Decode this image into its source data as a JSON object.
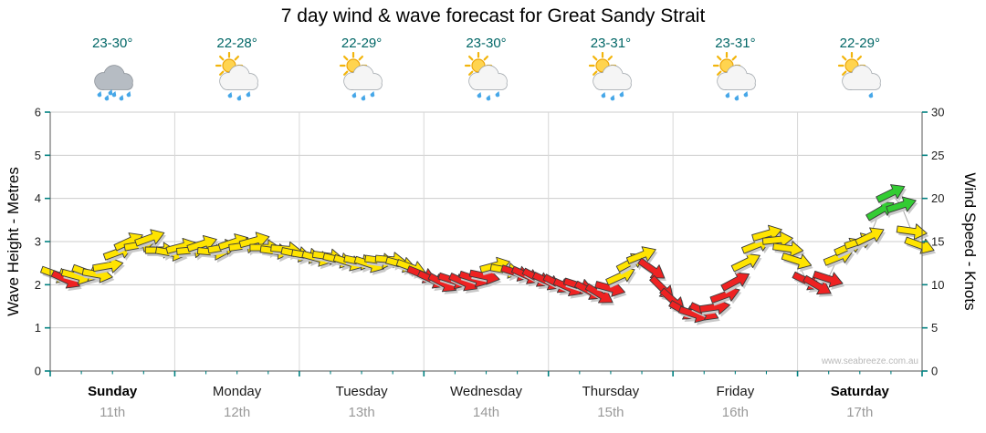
{
  "title": "7 day wind & wave forecast for Great Sandy Strait",
  "watermark": "www.seabreeze.com.au",
  "axes": {
    "left_label": "Wave Height - Metres",
    "right_label": "Wind Speed - Knots",
    "left_ticks": [
      "0",
      "1",
      "2",
      "3",
      "4",
      "5",
      "6"
    ],
    "right_ticks": [
      "0",
      "5",
      "10",
      "15",
      "20",
      "25",
      "30"
    ],
    "left_lim": [
      0,
      6
    ],
    "right_lim": [
      0,
      30
    ]
  },
  "days": [
    {
      "name": "Sunday",
      "date": "11th",
      "temp": "23-30°",
      "icon": "rain",
      "bold": true
    },
    {
      "name": "Monday",
      "date": "12th",
      "temp": "22-28°",
      "icon": "sun-cloud-rain",
      "bold": false
    },
    {
      "name": "Tuesday",
      "date": "13th",
      "temp": "22-29°",
      "icon": "sun-cloud-rain",
      "bold": false
    },
    {
      "name": "Wednesday",
      "date": "14th",
      "temp": "23-30°",
      "icon": "sun-cloud-rain",
      "bold": false
    },
    {
      "name": "Thursday",
      "date": "15th",
      "temp": "23-31°",
      "icon": "sun-cloud-rain",
      "bold": false
    },
    {
      "name": "Friday",
      "date": "16th",
      "temp": "23-31°",
      "icon": "sun-cloud-rain",
      "bold": false
    },
    {
      "name": "Saturday",
      "date": "17th",
      "temp": "22-29°",
      "icon": "sun-cloud-drizzle",
      "bold": true
    }
  ],
  "colors": {
    "yellow": "#ffe400",
    "red": "#ee2222",
    "green": "#33cc33",
    "tick": "#008080",
    "temp": "#006666",
    "grid": "#cccccc",
    "shadow": "#c9c9c9",
    "line": "#aaaaaa"
  },
  "chart_data": {
    "type": "wind-arrow-series",
    "title": "7 day wind & wave forecast for Great Sandy Strait",
    "x_unit": "fraction_of_week",
    "y_unit": "knots",
    "ylim": [
      0,
      30
    ],
    "wave_axis_lim": [
      0,
      6
    ],
    "grid": true,
    "point_format": [
      "t_week_fraction",
      "wind_knots",
      "direction_deg_cw_from_east",
      "color_key"
    ],
    "color_key_map": {
      "y": "yellow",
      "r": "red",
      "g": "green"
    },
    "points": [
      [
        0.006,
        11.2,
        20,
        "y"
      ],
      [
        0.018,
        10.6,
        25,
        "r"
      ],
      [
        0.03,
        11.0,
        15,
        "y"
      ],
      [
        0.042,
        11.4,
        20,
        "y"
      ],
      [
        0.054,
        11.2,
        10,
        "y"
      ],
      [
        0.066,
        12.2,
        -10,
        "y"
      ],
      [
        0.078,
        13.8,
        -20,
        "y"
      ],
      [
        0.09,
        15.0,
        -25,
        "y"
      ],
      [
        0.102,
        14.6,
        -10,
        "y"
      ],
      [
        0.114,
        15.4,
        -20,
        "y"
      ],
      [
        0.126,
        14.0,
        0,
        "y"
      ],
      [
        0.138,
        13.7,
        10,
        "y"
      ],
      [
        0.15,
        14.4,
        -15,
        "y"
      ],
      [
        0.162,
        14.0,
        -5,
        "y"
      ],
      [
        0.174,
        14.7,
        -18,
        "y"
      ],
      [
        0.186,
        13.8,
        5,
        "y"
      ],
      [
        0.198,
        14.3,
        -10,
        "y"
      ],
      [
        0.21,
        14.9,
        -18,
        "y"
      ],
      [
        0.222,
        14.5,
        -8,
        "y"
      ],
      [
        0.234,
        15.1,
        -15,
        "y"
      ],
      [
        0.246,
        14.3,
        0,
        "y"
      ],
      [
        0.258,
        13.9,
        8,
        "y"
      ],
      [
        0.27,
        14.1,
        5,
        "y"
      ],
      [
        0.282,
        13.6,
        12,
        "y"
      ],
      [
        0.294,
        13.4,
        10,
        "y"
      ],
      [
        0.306,
        13.1,
        15,
        "y"
      ],
      [
        0.318,
        13.3,
        8,
        "y"
      ],
      [
        0.33,
        12.9,
        14,
        "y"
      ],
      [
        0.342,
        12.6,
        18,
        "y"
      ],
      [
        0.354,
        12.7,
        12,
        "y"
      ],
      [
        0.366,
        12.4,
        18,
        "y"
      ],
      [
        0.378,
        12.8,
        8,
        "y"
      ],
      [
        0.39,
        12.9,
        5,
        "y"
      ],
      [
        0.402,
        12.4,
        15,
        "y"
      ],
      [
        0.414,
        12.0,
        20,
        "y"
      ],
      [
        0.426,
        11.2,
        22,
        "r"
      ],
      [
        0.438,
        10.6,
        25,
        "r"
      ],
      [
        0.45,
        10.2,
        28,
        "r"
      ],
      [
        0.462,
        10.5,
        18,
        "r"
      ],
      [
        0.474,
        10.3,
        25,
        "r"
      ],
      [
        0.486,
        10.7,
        18,
        "r"
      ],
      [
        0.498,
        11.0,
        12,
        "r"
      ],
      [
        0.51,
        12.2,
        -15,
        "y"
      ],
      [
        0.522,
        11.7,
        10,
        "y"
      ],
      [
        0.534,
        11.4,
        18,
        "r"
      ],
      [
        0.546,
        11.1,
        24,
        "r"
      ],
      [
        0.558,
        10.8,
        28,
        "r"
      ],
      [
        0.57,
        10.4,
        25,
        "r"
      ],
      [
        0.582,
        10.1,
        28,
        "r"
      ],
      [
        0.594,
        9.7,
        24,
        "r"
      ],
      [
        0.606,
        9.9,
        18,
        "r"
      ],
      [
        0.618,
        9.3,
        28,
        "r"
      ],
      [
        0.63,
        8.9,
        32,
        "r"
      ],
      [
        0.642,
        9.6,
        15,
        "r"
      ],
      [
        0.654,
        11.0,
        -25,
        "y"
      ],
      [
        0.666,
        12.6,
        -28,
        "y"
      ],
      [
        0.678,
        13.4,
        -22,
        "y"
      ],
      [
        0.69,
        11.8,
        35,
        "r"
      ],
      [
        0.702,
        9.6,
        45,
        "r"
      ],
      [
        0.714,
        8.2,
        42,
        "r"
      ],
      [
        0.726,
        7.0,
        30,
        "r"
      ],
      [
        0.738,
        6.6,
        18,
        "r"
      ],
      [
        0.75,
        6.9,
        25,
        "r"
      ],
      [
        0.762,
        7.4,
        -8,
        "r"
      ],
      [
        0.774,
        8.8,
        -20,
        "r"
      ],
      [
        0.786,
        10.4,
        -28,
        "r"
      ],
      [
        0.798,
        12.6,
        -26,
        "y"
      ],
      [
        0.81,
        14.6,
        -22,
        "y"
      ],
      [
        0.822,
        15.9,
        -16,
        "y"
      ],
      [
        0.834,
        15.2,
        -6,
        "y"
      ],
      [
        0.846,
        14.2,
        8,
        "y"
      ],
      [
        0.856,
        12.8,
        18,
        "y"
      ],
      [
        0.868,
        10.4,
        26,
        "r"
      ],
      [
        0.88,
        9.9,
        30,
        "r"
      ],
      [
        0.892,
        10.7,
        18,
        "r"
      ],
      [
        0.904,
        13.2,
        -22,
        "y"
      ],
      [
        0.916,
        14.4,
        -24,
        "y"
      ],
      [
        0.928,
        15.0,
        -18,
        "y"
      ],
      [
        0.94,
        15.6,
        -26,
        "y"
      ],
      [
        0.952,
        18.6,
        -30,
        "g"
      ],
      [
        0.964,
        20.6,
        -26,
        "g"
      ],
      [
        0.976,
        19.2,
        -18,
        "g"
      ],
      [
        0.988,
        16.2,
        8,
        "y"
      ],
      [
        0.997,
        14.6,
        20,
        "y"
      ]
    ]
  }
}
